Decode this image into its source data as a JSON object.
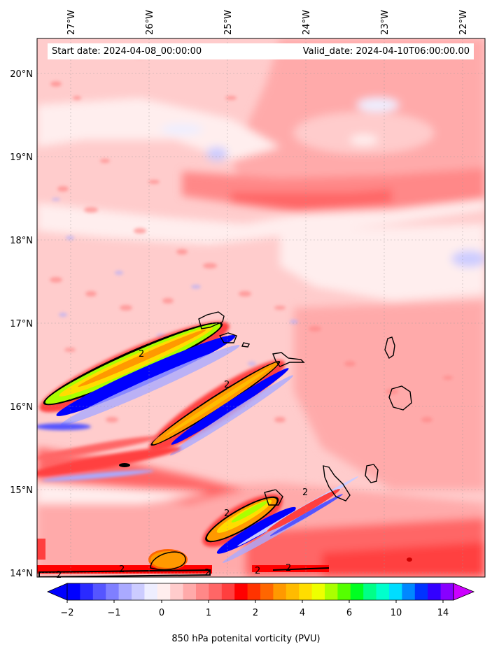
{
  "info": {
    "start_date": "Start date: 2024-04-08_00:00:00",
    "valid_date": "Valid_date: 2024-04-10T06:00:00.00"
  },
  "lon_labels": [
    "27°W",
    "26°W",
    "25°W",
    "24°W",
    "23°W",
    "22°W"
  ],
  "lat_labels": [
    "20°N",
    "19°N",
    "18°N",
    "17°N",
    "16°N",
    "15°N",
    "14°N"
  ],
  "colorbar": {
    "label": "850 hPa potenital vorticity (PVU)",
    "ticks": [
      "−2",
      "−1",
      "0",
      "1",
      "2",
      "4",
      "6",
      "10",
      "14"
    ],
    "colors": [
      "#0000ff",
      "#2a2aff",
      "#5555ff",
      "#7f7fff",
      "#aaaaff",
      "#ccccff",
      "#eeeeff",
      "#ffeeee",
      "#ffcccc",
      "#ffaaaa",
      "#ff8888",
      "#ff6666",
      "#ff3f3f",
      "#ff0000",
      "#ff3300",
      "#ff6600",
      "#ff9900",
      "#ffbb00",
      "#ffdd00",
      "#eeff00",
      "#aaff00",
      "#55ff00",
      "#00ff22",
      "#00ff88",
      "#00ffcc",
      "#00ddff",
      "#0088ff",
      "#0033ff",
      "#3300ff",
      "#8800ff"
    ]
  },
  "contour_labels": [
    "2",
    "2",
    "2",
    "2",
    "2",
    "2",
    "2",
    "2",
    "2"
  ],
  "chart_data": {
    "type": "heatmap",
    "title": "",
    "variable": "850 hPa potenital vorticity (PVU)",
    "lon_range": [
      -27.3,
      -21.8
    ],
    "lat_range": [
      13.95,
      20.4
    ],
    "colorbar_range": [
      -2,
      16
    ],
    "colorbar_ticks": [
      -2,
      -1,
      0,
      1,
      2,
      4,
      6,
      10,
      14
    ],
    "contour_level": 2,
    "grid": true
  }
}
